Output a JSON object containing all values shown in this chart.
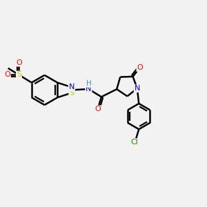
{
  "bg_color": "#f2f2f2",
  "bond_color": "#000000",
  "bond_width": 1.8,
  "figsize": [
    3.0,
    3.0
  ],
  "dpi": 100,
  "colors": {
    "S": "#cccc00",
    "O": "#ff0000",
    "N": "#0000bb",
    "H": "#4a9090",
    "Cl": "#228800",
    "C": "#000000"
  }
}
